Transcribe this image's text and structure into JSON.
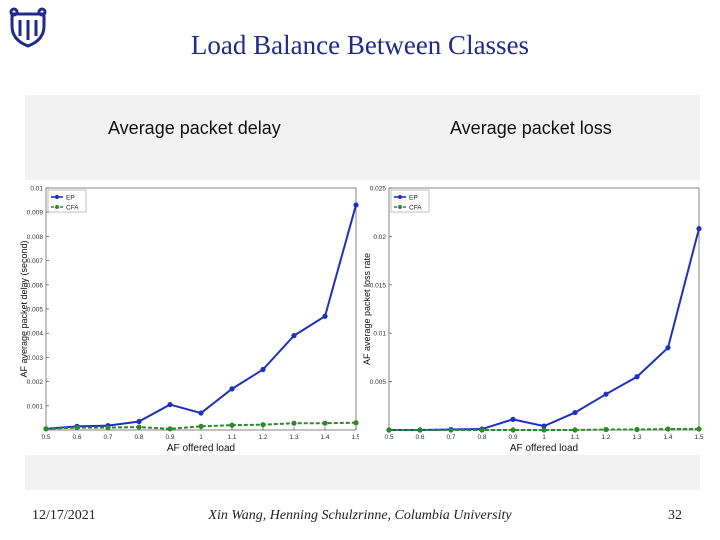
{
  "header": {
    "title": "Load Balance Between Classes"
  },
  "footer": {
    "date": "12/17/2021",
    "credit": "Xin Wang, Henning Schulzrinne, Columbia University",
    "page": "32"
  },
  "colors": {
    "title": "#1f2a8a",
    "ep": "#1f2fbf",
    "cfa": "#2a8a2a"
  },
  "chart_data": [
    {
      "type": "line",
      "title": "Average packet delay",
      "xlabel": "AF offered load",
      "ylabel": "AF average packet delay (second)",
      "categories": [
        "0.5",
        "0.6",
        "0.7",
        "0.8",
        "0.9",
        "1",
        "1.1",
        "1.2",
        "1.3",
        "1.4",
        "1.5"
      ],
      "xlim": [
        0.5,
        1.5
      ],
      "ylim": [
        0,
        0.01
      ],
      "yticks": [
        0.001,
        0.002,
        0.003,
        0.004,
        0.005,
        0.006,
        0.007,
        0.008,
        0.009,
        0.01
      ],
      "ytick_labels": [
        "0.001",
        "0.002",
        "0.003",
        "0.004",
        "0.005",
        "0.006",
        "0.007",
        "0.008",
        "0.009",
        "0.01"
      ],
      "xtick_labels": [
        "0.5",
        "0.6",
        "0.7",
        "0.8",
        "0.9",
        "1",
        "1.1",
        "1.2",
        "1.3",
        "1.4",
        "1.5"
      ],
      "series": [
        {
          "name": "EP",
          "values": [
            5e-05,
            0.00015,
            0.00018,
            0.00035,
            0.00105,
            0.0007,
            0.0017,
            0.0025,
            0.0039,
            0.0047,
            0.0093
          ]
        },
        {
          "name": "CFA",
          "values": [
            5e-05,
            0.0001,
            0.0001,
            0.00012,
            5e-05,
            0.00015,
            0.0002,
            0.00022,
            0.00028,
            0.00028,
            0.0003
          ]
        }
      ],
      "legend": "top-left"
    },
    {
      "type": "line",
      "title": "Average packet loss",
      "xlabel": "AF offered load",
      "ylabel": "AF average packet loss rate",
      "categories": [
        "0.5",
        "0.6",
        "0.7",
        "0.8",
        "0.9",
        "1",
        "1.1",
        "1.2",
        "1.3",
        "1.4",
        "1.5"
      ],
      "xlim": [
        0.5,
        1.5
      ],
      "ylim": [
        0,
        0.025
      ],
      "yticks": [
        0.005,
        0.01,
        0.015,
        0.02,
        0.025
      ],
      "ytick_labels": [
        "0.005",
        "0.01",
        "0.015",
        "0.02",
        "0.025"
      ],
      "xtick_labels": [
        "0.5",
        "0.6",
        "0.7",
        "0.8",
        "0.9",
        "1",
        "1.1",
        "1.2",
        "1.3",
        "1.4",
        "1.5"
      ],
      "series": [
        {
          "name": "EP",
          "values": [
            0,
            0,
            5e-05,
            0.0001,
            0.0011,
            0.0004,
            0.0018,
            0.0037,
            0.0055,
            0.0085,
            0.0208
          ]
        },
        {
          "name": "CFA",
          "values": [
            0,
            0,
            0,
            0,
            0,
            0,
            0,
            5e-05,
            5e-05,
            0.0001,
            0.0001
          ]
        }
      ],
      "legend": "top-left"
    }
  ]
}
